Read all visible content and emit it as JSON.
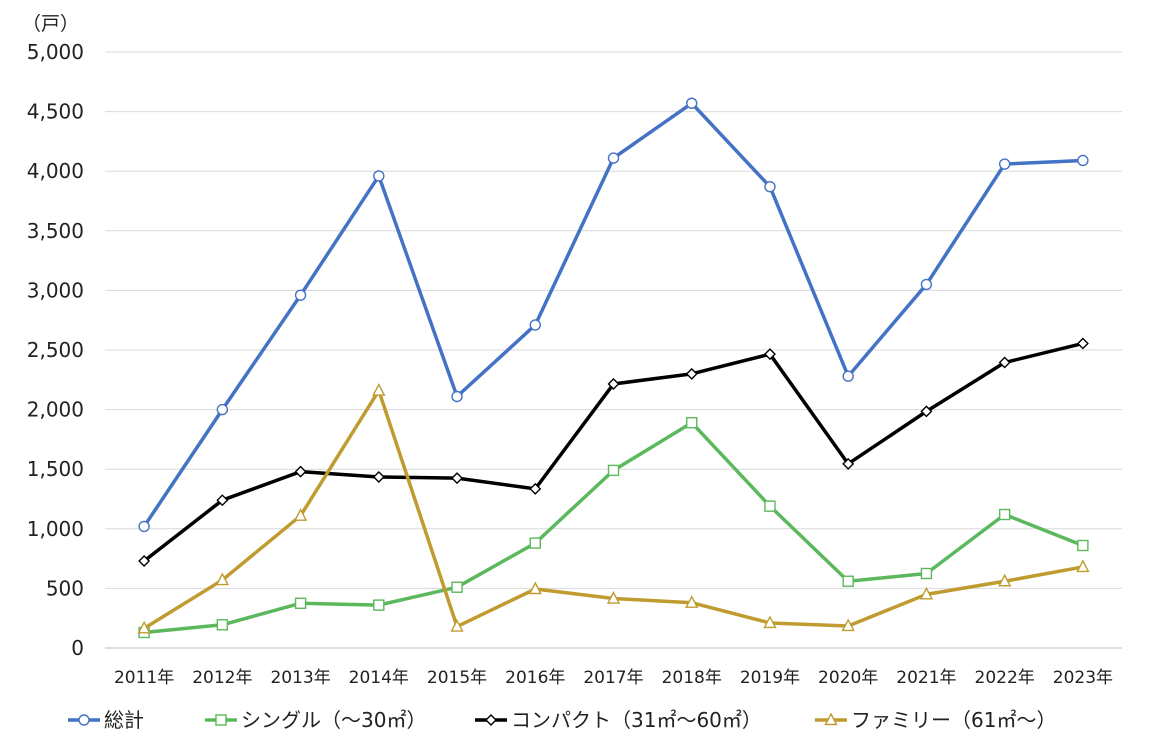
{
  "chart_data": {
    "type": "line",
    "unit_label": "（戸）",
    "categories": [
      "2011年",
      "2012年",
      "2013年",
      "2014年",
      "2015年",
      "2016年",
      "2017年",
      "2018年",
      "2019年",
      "2020年",
      "2021年",
      "2022年",
      "2023年"
    ],
    "ylim": [
      0,
      5000
    ],
    "yticks": [
      "0",
      "500",
      "1,000",
      "1,500",
      "2,000",
      "2,500",
      "3,000",
      "3,500",
      "4,000",
      "4,500",
      "5,000"
    ],
    "grid": true,
    "legend_position": "bottom",
    "series": [
      {
        "name": "総計",
        "color": "#4472c4",
        "marker": "circle",
        "values": [
          1020,
          2000,
          2960,
          3960,
          2110,
          2710,
          4110,
          4570,
          3870,
          2280,
          3050,
          4060,
          4090
        ]
      },
      {
        "name": "シングル（～30㎡）",
        "color": "#5cb85c",
        "marker": "square",
        "values": [
          130,
          195,
          375,
          360,
          510,
          880,
          1490,
          1890,
          1190,
          560,
          625,
          1120,
          860
        ]
      },
      {
        "name": "コンパクト（31㎡～60㎡）",
        "color": "#000000",
        "marker": "diamond",
        "values": [
          730,
          1240,
          1480,
          1435,
          1425,
          1335,
          2215,
          2300,
          2465,
          1545,
          1985,
          2395,
          2555
        ]
      },
      {
        "name": "ファミリー（61㎡～）",
        "color": "#bf9b30",
        "marker": "triangle",
        "values": [
          165,
          570,
          1110,
          2160,
          180,
          495,
          415,
          380,
          210,
          185,
          450,
          560,
          680
        ]
      }
    ]
  }
}
